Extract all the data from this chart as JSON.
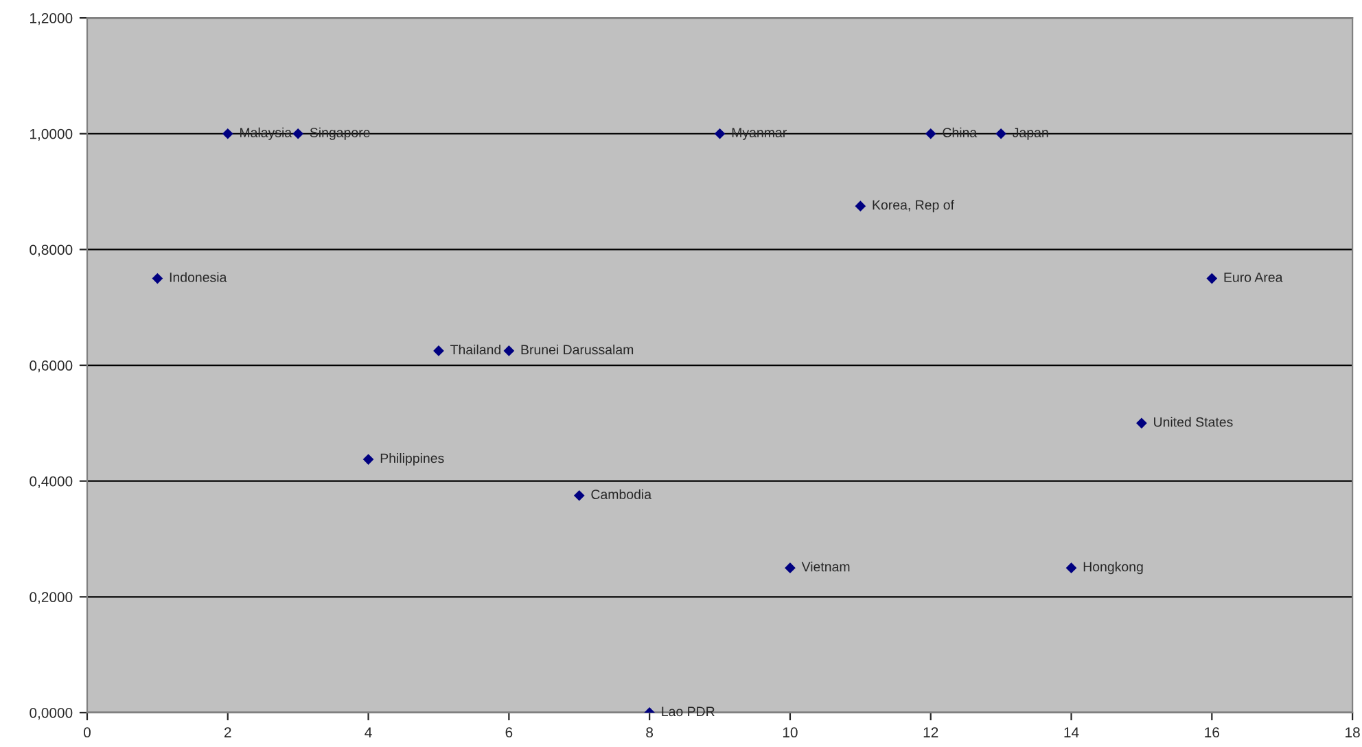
{
  "chart_data": {
    "type": "scatter",
    "x": [
      1,
      2,
      3,
      4,
      5,
      6,
      7,
      8,
      9,
      10,
      11,
      12,
      13,
      14,
      15,
      16
    ],
    "series": [
      {
        "color": "#000080",
        "values": [
          0.75,
          1.0,
          1.0,
          0.4375,
          0.625,
          0.625,
          0.375,
          0.0,
          1.0,
          0.25,
          0.875,
          1.0,
          1.0,
          0.25,
          0.5,
          0.75
        ]
      }
    ],
    "annotations": [
      {
        "text": "Indonesia",
        "x": 1,
        "y": 0.75
      },
      {
        "text": "Malaysia",
        "x": 2,
        "y": 1.0
      },
      {
        "text": "Singapore",
        "x": 3,
        "y": 1.0
      },
      {
        "text": "Philippines",
        "x": 4,
        "y": 0.4375
      },
      {
        "text": "Thailand",
        "x": 5,
        "y": 0.625
      },
      {
        "text": "Brunei Darussalam",
        "x": 6,
        "y": 0.625
      },
      {
        "text": "Cambodia",
        "x": 7,
        "y": 0.375
      },
      {
        "text": "Lao PDR",
        "x": 8,
        "y": 0.0
      },
      {
        "text": "Myanmar",
        "x": 9,
        "y": 1.0
      },
      {
        "text": "Vietnam",
        "x": 10,
        "y": 0.25
      },
      {
        "text": "Korea, Rep of",
        "x": 11,
        "y": 0.875
      },
      {
        "text": "China",
        "x": 12,
        "y": 1.0
      },
      {
        "text": "Japan",
        "x": 13,
        "y": 1.0
      },
      {
        "text": "Hongkong",
        "x": 14,
        "y": 0.25
      },
      {
        "text": "United States",
        "x": 15,
        "y": 0.5
      },
      {
        "text": "Euro Area",
        "x": 16,
        "y": 0.75
      }
    ],
    "xlim": [
      0,
      18
    ],
    "xticks": [
      0,
      2,
      4,
      6,
      8,
      10,
      12,
      14,
      16,
      18
    ],
    "ylim": [
      0,
      1.2
    ],
    "yticks": [
      {
        "value": 0,
        "label": "0,0000"
      },
      {
        "value": 0.2,
        "label": "0,2000"
      },
      {
        "value": 0.4,
        "label": "0,4000"
      },
      {
        "value": 0.6,
        "label": "0,6000"
      },
      {
        "value": 0.8,
        "label": "0,8000"
      },
      {
        "value": 1.0,
        "label": "1,0000"
      },
      {
        "value": 1.2,
        "label": "1,2000"
      }
    ],
    "grid": "y",
    "marker": "diamond",
    "legend": false
  }
}
